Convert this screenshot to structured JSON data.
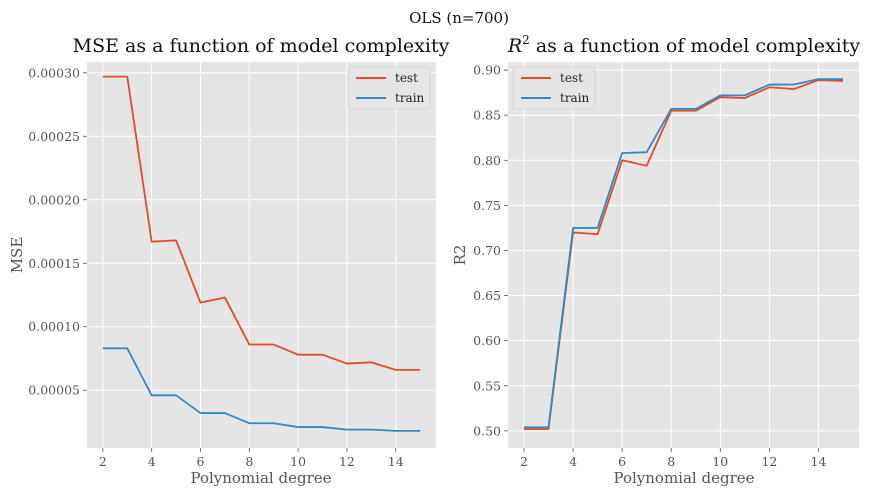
{
  "figure": {
    "suptitle": "OLS (n=700)"
  },
  "chart_data": [
    {
      "type": "line",
      "title": "MSE as a function of model complexity",
      "xlabel": "Polynomial degree",
      "ylabel": "MSE",
      "x": [
        2,
        3,
        4,
        5,
        6,
        7,
        8,
        9,
        10,
        11,
        12,
        13,
        14,
        15
      ],
      "xticks": [
        2,
        4,
        6,
        8,
        10,
        12,
        14
      ],
      "xtick_labels": [
        "2",
        "4",
        "6",
        "8",
        "10",
        "12",
        "14"
      ],
      "xlim": [
        1.35,
        15.65
      ],
      "yticks": [
        5e-05,
        0.0001,
        0.00015,
        0.0002,
        0.00025,
        0.0003
      ],
      "ytick_labels": [
        "0.00005",
        "0.00010",
        "0.00015",
        "0.00020",
        "0.00025",
        "0.00030"
      ],
      "ylim": [
        4.5e-06,
        0.0003085
      ],
      "grid": true,
      "legend": "top-right",
      "series": [
        {
          "name": "test",
          "color": "#E24A33",
          "values": [
            0.000297,
            0.000297,
            0.000167,
            0.000168,
            0.000119,
            0.000123,
            8.6e-05,
            8.6e-05,
            7.8e-05,
            7.8e-05,
            7.1e-05,
            7.2e-05,
            6.6e-05,
            6.6e-05
          ]
        },
        {
          "name": "train",
          "color": "#348ABD",
          "values": [
            8.3e-05,
            8.3e-05,
            4.6e-05,
            4.6e-05,
            3.2e-05,
            3.2e-05,
            2.4e-05,
            2.4e-05,
            2.1e-05,
            2.1e-05,
            1.9e-05,
            1.9e-05,
            1.8e-05,
            1.8e-05
          ]
        }
      ]
    },
    {
      "type": "line",
      "title_base": "R",
      "title_sup": "2",
      "title_rest": " as a function of model complexity",
      "xlabel": "Polynomial degree",
      "ylabel": "R2",
      "x": [
        2,
        3,
        4,
        5,
        6,
        7,
        8,
        9,
        10,
        11,
        12,
        13,
        14,
        15
      ],
      "xticks": [
        2,
        4,
        6,
        8,
        10,
        12,
        14
      ],
      "xtick_labels": [
        "2",
        "4",
        "6",
        "8",
        "10",
        "12",
        "14"
      ],
      "xlim": [
        1.35,
        15.65
      ],
      "yticks": [
        0.5,
        0.55,
        0.6,
        0.65,
        0.7,
        0.75,
        0.8,
        0.85,
        0.9
      ],
      "ytick_labels": [
        "0.50",
        "0.55",
        "0.60",
        "0.65",
        "0.70",
        "0.75",
        "0.80",
        "0.85",
        "0.90"
      ],
      "ylim": [
        0.481,
        0.909
      ],
      "grid": true,
      "legend": "top-left",
      "series": [
        {
          "name": "test",
          "color": "#E24A33",
          "values": [
            0.502,
            0.502,
            0.72,
            0.718,
            0.8,
            0.794,
            0.855,
            0.855,
            0.87,
            0.869,
            0.881,
            0.879,
            0.889,
            0.888
          ]
        },
        {
          "name": "train",
          "color": "#348ABD",
          "values": [
            0.504,
            0.504,
            0.725,
            0.725,
            0.808,
            0.809,
            0.857,
            0.857,
            0.872,
            0.872,
            0.884,
            0.884,
            0.89,
            0.89
          ]
        }
      ]
    }
  ]
}
